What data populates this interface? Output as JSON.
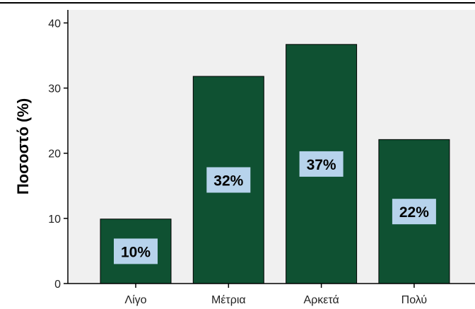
{
  "chart_data": {
    "type": "bar",
    "categories": [
      "Λίγο",
      "Μέτρια",
      "Αρκετά",
      "Πολύ"
    ],
    "values": [
      9.9,
      31.8,
      36.7,
      22.1
    ],
    "data_labels": [
      "10%",
      "32%",
      "37%",
      "22%"
    ],
    "title": "",
    "xlabel": "",
    "ylabel": "Ποσοστό (%)",
    "ylim": [
      0,
      42
    ],
    "yticks": [
      0,
      10,
      20,
      30,
      40
    ],
    "grid": false,
    "legend": "none",
    "colors": {
      "bar": "#0f5132",
      "plot_background": "#f0f0f0",
      "label_box": "#b7d3ec"
    }
  }
}
